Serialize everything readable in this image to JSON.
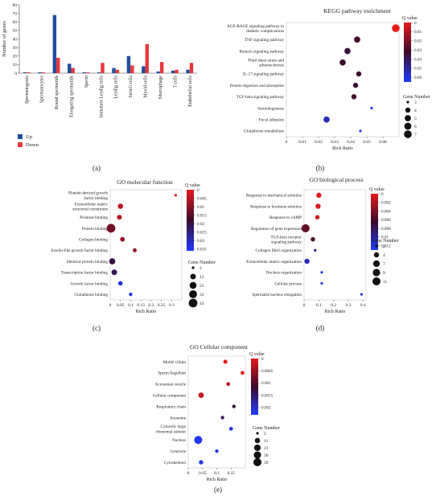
{
  "panel_labels": [
    "(a)",
    "(b)",
    "(c)",
    "(d)",
    "(e)"
  ],
  "chart_data": [
    {
      "type": "bar",
      "label": "(a)",
      "title": "",
      "ylabel": "Number of genes",
      "ylim": [
        0,
        80
      ],
      "yticks": [
        0,
        10,
        20,
        30,
        40,
        50,
        60,
        70,
        80
      ],
      "categories": [
        "Spermatogonia",
        "Spermatocytes",
        "Round spermatids",
        "Elongating spermatids",
        "Sperm",
        "Immature Leydig cells",
        "Leydig cells",
        "Sertoli cells",
        "Myoid cells",
        "Macrophage",
        "T cells",
        "Endothelial cells"
      ],
      "series": [
        {
          "name": "Up",
          "color": "#1f4e9c",
          "values": [
            1,
            1,
            68,
            11,
            1,
            1,
            6,
            20,
            8,
            2,
            3,
            4
          ]
        },
        {
          "name": "Down",
          "color": "#e8383d",
          "values": [
            1,
            1,
            18,
            6,
            1,
            12,
            4,
            9,
            34,
            13,
            4,
            12
          ]
        }
      ],
      "legend_position": "bottom-left"
    },
    {
      "type": "scatter",
      "label": "(b)",
      "title": "KEGG pathway enrichment",
      "xlabel": "Rich Ratio",
      "xlim": [
        0,
        0.07
      ],
      "xticks": [
        0,
        0.01,
        0.02,
        0.03,
        0.04,
        0.05,
        0.06
      ],
      "categories": [
        "AGE-RAGE signaling pathway in diabetic complications",
        "TNF signaling pathway",
        "Relaxin signaling pathway",
        "Fluid shear stress and atherosclerosis",
        "IL-17 signaling pathway",
        "Protein digestion and absorption",
        "TGF-beta signaling pathway",
        "Steroidogenesis",
        "Focal adhesion",
        "Glutathione metabolism"
      ],
      "category_lines": [
        [
          "AGE-RAGE signaling pathway in",
          "diabetic complications"
        ],
        [
          "TNF signaling pathway"
        ],
        [
          "Relaxin signaling pathway"
        ],
        [
          "Fluid shear stress and",
          "atherosclerosis"
        ],
        [
          "IL-17 signaling pathway"
        ],
        [
          "Protein digestion and absorption"
        ],
        [
          "TGF-beta signaling pathway"
        ],
        [
          "Steroidogenesis"
        ],
        [
          "Focal adhesion"
        ],
        [
          "Glutathione metabolism"
        ]
      ],
      "x": [
        0.068,
        0.044,
        0.038,
        0.035,
        0.045,
        0.043,
        0.042,
        0.053,
        0.025,
        0.046
      ],
      "qvalue": [
        0.0,
        0.03,
        0.035,
        0.033,
        0.032,
        0.034,
        0.031,
        0.062,
        0.055,
        0.063
      ],
      "gene_number": [
        7,
        5,
        5,
        5,
        4,
        4,
        4,
        3,
        5,
        3
      ],
      "colorbar": {
        "title": "Q value",
        "ticks": [
          0,
          0.01,
          0.02,
          0.03,
          0.04,
          0.05,
          0.06
        ],
        "min": 0,
        "max": 0.065
      },
      "size_legend": {
        "title": "Gene Number",
        "values": [
          3,
          4,
          5,
          6,
          7
        ],
        "min": 3,
        "max": 7
      }
    },
    {
      "type": "scatter",
      "label": "(c)",
      "title": "GO molecular function",
      "xlabel": "Rich Ratio",
      "xlim": [
        0,
        0.35
      ],
      "xticks": [
        0.05,
        0.1,
        0.15,
        0.2,
        0.25,
        0.3
      ],
      "xticklabels": [
        "0.05",
        "0.1",
        "0.15",
        "0.2",
        "0.25",
        "0.3"
      ],
      "extra_tick_label": "0",
      "categories": [
        "Platelet-derived growth factor binding",
        "Extracellular matrix structural constituent",
        "Protease binding",
        "Protein binding",
        "Collagen binding",
        "Insulin-like growth factor binding",
        "Identical protein binding",
        "Transcription factor binding",
        "Growth factor binding",
        "Glutathione binding"
      ],
      "category_lines": [
        [
          "Platelet-derived growth",
          "factor binding"
        ],
        [
          "Extracellular matrix",
          "structural constituent"
        ],
        [
          "Protease binding"
        ],
        [
          "Protein binding"
        ],
        [
          "Collagen binding"
        ],
        [
          "Insulin-like growth factor binding"
        ],
        [
          "Identical protein binding"
        ],
        [
          "Transcription factor binding"
        ],
        [
          "Growth factor binding"
        ],
        [
          "Glutathione binding"
        ]
      ],
      "x": [
        0.32,
        0.05,
        0.045,
        0.004,
        0.06,
        0.12,
        0.01,
        0.02,
        0.05,
        0.1
      ],
      "qvalue": [
        0.0,
        0.004,
        0.005,
        0.012,
        0.008,
        0.01,
        0.02,
        0.022,
        0.033,
        0.035
      ],
      "gene_number": [
        2,
        10,
        8,
        43,
        7,
        4,
        16,
        12,
        6,
        3
      ],
      "colorbar": {
        "title": "Q value",
        "ticks": [
          0,
          0.005,
          0.01,
          0.015,
          0.02,
          0.025,
          0.03,
          0.035
        ],
        "min": 0,
        "max": 0.036
      },
      "size_legend": {
        "title": "Gene Number",
        "values": [
          2,
          12,
          23,
          33,
          43
        ],
        "min": 2,
        "max": 43
      }
    },
    {
      "type": "scatter",
      "label": "(d)",
      "title": "GO biological process",
      "xlabel": "Rich Ratio",
      "xlim": [
        0,
        0.42
      ],
      "xticks": [
        0,
        0.1,
        0.2,
        0.3,
        0.4
      ],
      "categories": [
        "Response to mechanical stimulus",
        "Response to hormone stimulus",
        "Response to cAMP",
        "Regulation of gene expression",
        "TGF-beta receptor signaling pathway",
        "Collagen fibril organization",
        "Extracellular matrix organization",
        "Nucleus organization",
        "Cellular process",
        "Spermatid nucleus elongation"
      ],
      "category_lines": [
        [
          "Response to mechanical stimulus"
        ],
        [
          "Response to hormone stimulus"
        ],
        [
          "Response to cAMP"
        ],
        [
          "Regulation of gene expression"
        ],
        [
          "TGF-beta receptor",
          "signaling pathway"
        ],
        [
          "Collagen fibril organization"
        ],
        [
          "Extracellular matrix organization"
        ],
        [
          "Nucleus organization"
        ],
        [
          "Cellular process"
        ],
        [
          "Spermatid nucleus elongation"
        ]
      ],
      "x": [
        0.1,
        0.095,
        0.09,
        0.01,
        0.06,
        0.075,
        0.02,
        0.12,
        0.12,
        0.39
      ],
      "qvalue": [
        0.0,
        0.0005,
        0.001,
        0.005,
        0.006,
        0.01,
        0.011,
        0.0125,
        0.0125,
        0.013
      ],
      "gene_number": [
        4,
        4,
        3,
        11,
        3,
        2,
        4,
        2,
        2,
        2
      ],
      "colorbar": {
        "title": "Q value",
        "ticks": [
          0,
          0.002,
          0.004,
          0.006,
          0.008,
          0.01,
          0.012
        ],
        "min": 0,
        "max": 0.013
      },
      "size_legend": {
        "title": "Gene Number",
        "values": [
          2,
          4,
          7,
          9,
          11
        ],
        "min": 2,
        "max": 11
      }
    },
    {
      "type": "scatter",
      "label": "(e)",
      "title": "GO Cellular component",
      "xlabel": "Rich Ratio",
      "xlim": [
        0,
        0.2
      ],
      "xticks": [
        0,
        0.05,
        0.1,
        0.15
      ],
      "categories": [
        "Motile cilium",
        "Sperm flagellum",
        "Acrosomal vesicle",
        "Cellular component",
        "Respiratory chain",
        "Axoneme",
        "Cytosolic large ribosomal subunit",
        "Nucleus",
        "Centriole",
        "Cytoskeleton"
      ],
      "category_lines": [
        [
          "Motile cilium"
        ],
        [
          "Sperm flagellum"
        ],
        [
          "Acrosomal vesicle"
        ],
        [
          "Cellular component"
        ],
        [
          "Respiratory chain"
        ],
        [
          "Axoneme"
        ],
        [
          "Cytosolic large",
          "ribosomal subunit"
        ],
        [
          "Nucleus"
        ],
        [
          "Centriole"
        ],
        [
          "Cytoskeleton"
        ]
      ],
      "x": [
        0.13,
        0.19,
        0.14,
        0.045,
        0.16,
        0.12,
        0.15,
        0.035,
        0.1,
        0.045
      ],
      "qvalue": [
        0.0,
        0.0001,
        0.0003,
        0.0002,
        0.0012,
        0.0014,
        0.0022,
        0.0022,
        0.0022,
        0.0022
      ],
      "gene_number": [
        5,
        4,
        4,
        12,
        3,
        3,
        4,
        39,
        3,
        6
      ],
      "colorbar": {
        "title": "Q value",
        "ticks": [
          0,
          0.0005,
          0.001,
          0.0015,
          0.002
        ],
        "min": 0,
        "max": 0.0023
      },
      "size_legend": {
        "title": "Gene Number",
        "values": [
          2,
          11,
          21,
          30,
          39
        ],
        "min": 2,
        "max": 39
      }
    }
  ]
}
